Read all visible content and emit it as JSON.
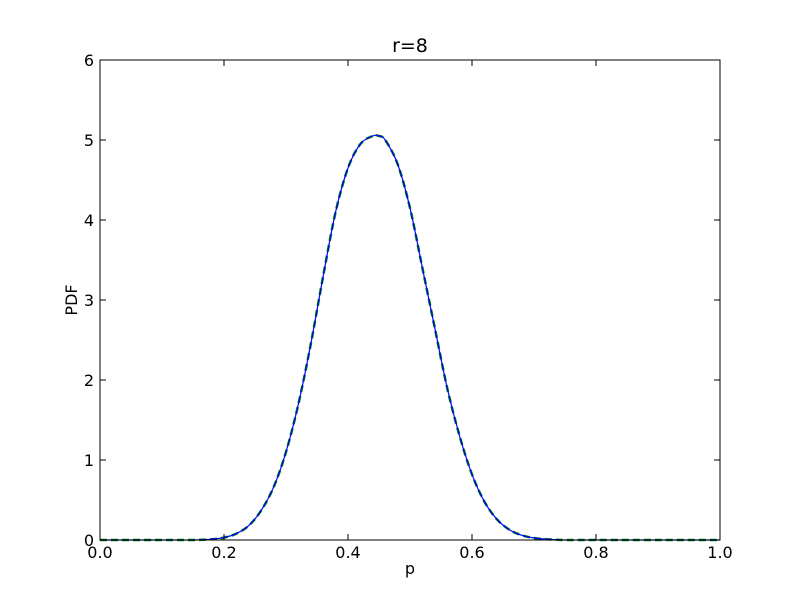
{
  "chart_data": {
    "type": "line",
    "title": "r=8",
    "xlabel": "p",
    "ylabel": "PDF",
    "xlim": [
      0.0,
      1.0
    ],
    "ylim": [
      0,
      6
    ],
    "xticks": [
      0.0,
      0.2,
      0.4,
      0.6,
      0.8,
      1.0
    ],
    "xtick_labels": [
      "0.0",
      "0.2",
      "0.4",
      "0.6",
      "0.8",
      "1.0"
    ],
    "yticks": [
      0,
      1,
      2,
      3,
      4,
      5,
      6
    ],
    "ytick_labels": [
      "0",
      "1",
      "2",
      "3",
      "4",
      "5",
      "6"
    ],
    "grid": false,
    "legend": "none",
    "series": [
      {
        "color": "#0000ff",
        "style": "solid",
        "x": [
          0.0,
          0.1,
          0.15,
          0.18,
          0.2,
          0.22,
          0.24,
          0.26,
          0.28,
          0.3,
          0.32,
          0.34,
          0.36,
          0.38,
          0.4,
          0.42,
          0.44,
          0.45,
          0.46,
          0.48,
          0.5,
          0.52,
          0.54,
          0.56,
          0.58,
          0.6,
          0.62,
          0.64,
          0.66,
          0.68,
          0.7,
          0.72,
          0.75,
          0.8,
          0.9,
          1.0
        ],
        "y": [
          0.0,
          0.0,
          0.0,
          0.01,
          0.03,
          0.08,
          0.18,
          0.37,
          0.66,
          1.1,
          1.7,
          2.45,
          3.3,
          4.1,
          4.65,
          4.95,
          5.05,
          5.05,
          5.0,
          4.7,
          4.15,
          3.4,
          2.65,
          1.9,
          1.3,
          0.82,
          0.48,
          0.26,
          0.13,
          0.06,
          0.025,
          0.01,
          0.0,
          0.0,
          0.0,
          0.0
        ]
      },
      {
        "color": "#008000",
        "style": "dashed",
        "x": [
          0.0,
          0.1,
          0.15,
          0.18,
          0.2,
          0.22,
          0.24,
          0.26,
          0.28,
          0.3,
          0.32,
          0.34,
          0.36,
          0.38,
          0.4,
          0.42,
          0.44,
          0.45,
          0.46,
          0.48,
          0.5,
          0.52,
          0.54,
          0.56,
          0.58,
          0.6,
          0.62,
          0.64,
          0.66,
          0.68,
          0.7,
          0.72,
          0.75,
          0.8,
          0.9,
          1.0
        ],
        "y": [
          0.0,
          0.0,
          0.0,
          0.01,
          0.03,
          0.08,
          0.18,
          0.37,
          0.66,
          1.1,
          1.7,
          2.45,
          3.3,
          4.1,
          4.65,
          4.95,
          5.05,
          5.05,
          5.0,
          4.7,
          4.15,
          3.4,
          2.65,
          1.9,
          1.3,
          0.82,
          0.48,
          0.26,
          0.13,
          0.06,
          0.025,
          0.01,
          0.0,
          0.0,
          0.0,
          0.0
        ]
      }
    ]
  }
}
